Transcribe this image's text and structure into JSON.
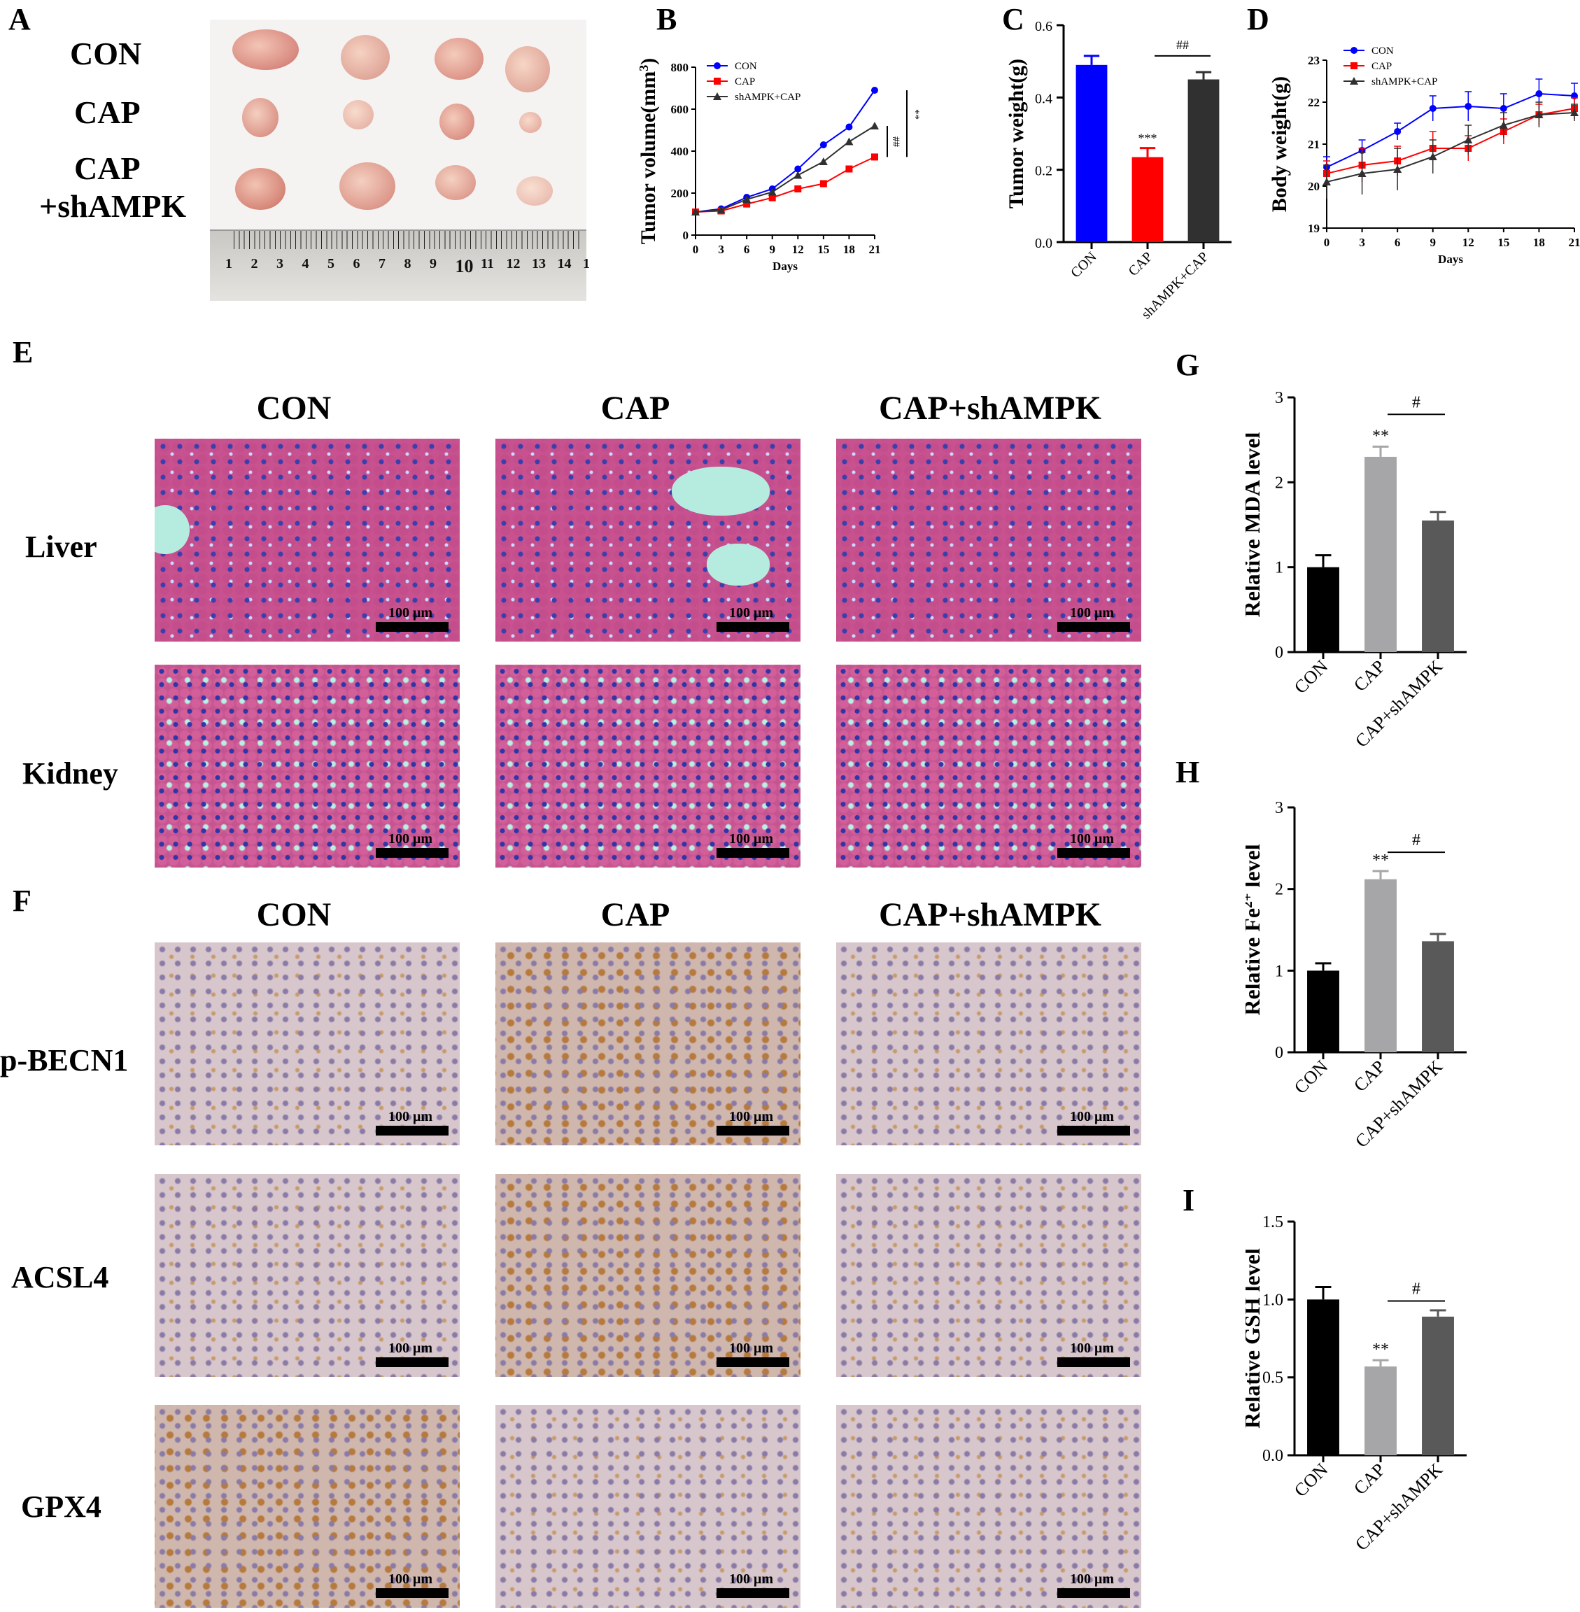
{
  "panels": {
    "A": "A",
    "B": "B",
    "C": "C",
    "D": "D",
    "E": "E",
    "F": "F",
    "G": "G",
    "H": "H",
    "I": "I"
  },
  "panelA": {
    "row_labels": [
      "CON",
      "CAP",
      "CAP",
      "+shAMPK"
    ],
    "ruler_numbers": [
      "1",
      "2",
      "3",
      "4",
      "5",
      "6",
      "7",
      "8",
      "9",
      "10",
      "11",
      "12",
      "13",
      "14",
      "1"
    ]
  },
  "groups": {
    "con": "CON",
    "cap": "CAP",
    "capsh": "CAP+shAMPK"
  },
  "tissues": {
    "liver": "Liver",
    "kidney": "Kidney"
  },
  "stains": {
    "p_becn1": "p-BECN1",
    "acsl4": "ACSL4",
    "gpx4": "GPX4"
  },
  "scale_bar": "100 μm",
  "colors": {
    "con": "#0000ff",
    "cap": "#ff0000",
    "sh": "#303030",
    "black": "#000000",
    "gray_light": "#a6a6a8",
    "gray_dark": "#595959"
  },
  "chart_data": [
    {
      "id": "B",
      "type": "line",
      "xlabel": "Days",
      "ylabel": "Tumor volume(mm3)",
      "x": [
        0,
        3,
        6,
        9,
        12,
        15,
        18,
        21
      ],
      "xlim": [
        0,
        21
      ],
      "ylim": [
        0,
        800
      ],
      "yticks": [
        0,
        200,
        400,
        600,
        800
      ],
      "series": [
        {
          "name": "CON",
          "values": [
            110,
            125,
            180,
            220,
            315,
            430,
            515,
            690
          ]
        },
        {
          "name": "CAP",
          "values": [
            110,
            115,
            148,
            178,
            220,
            245,
            315,
            372
          ]
        },
        {
          "name": "shAMPK+CAP",
          "values": [
            110,
            120,
            170,
            205,
            285,
            350,
            445,
            520
          ]
        }
      ],
      "annotations": [
        "##",
        "**"
      ]
    },
    {
      "id": "C",
      "type": "bar",
      "ylabel": "Tumor weight(g)",
      "categories": [
        "CON",
        "CAP",
        "shAMPK+CAP"
      ],
      "values": [
        0.49,
        0.235,
        0.45
      ],
      "errors": [
        0.025,
        0.025,
        0.02
      ],
      "ylim": [
        0,
        0.6
      ],
      "yticks": [
        "0.0",
        "0.2",
        "0.4",
        "0.6"
      ],
      "annotations": [
        "***",
        "##"
      ]
    },
    {
      "id": "D",
      "type": "line",
      "xlabel": "Days",
      "ylabel": "Body weight(g)",
      "x": [
        0,
        3,
        6,
        9,
        12,
        15,
        18,
        21
      ],
      "xlim": [
        0,
        21
      ],
      "ylim": [
        19,
        23
      ],
      "yticks": [
        19,
        20,
        21,
        22,
        23
      ],
      "series": [
        {
          "name": "CON",
          "values": [
            20.45,
            20.85,
            21.3,
            21.85,
            21.9,
            21.85,
            22.2,
            22.15
          ]
        },
        {
          "name": "CAP",
          "values": [
            20.3,
            20.5,
            20.6,
            20.9,
            20.9,
            21.3,
            21.7,
            21.85
          ]
        },
        {
          "name": "shAMPK+CAP",
          "values": [
            20.1,
            20.3,
            20.4,
            20.7,
            21.1,
            21.45,
            21.7,
            21.75
          ]
        }
      ]
    },
    {
      "id": "G",
      "type": "bar",
      "ylabel": "Relative MDA level",
      "categories": [
        "CON",
        "CAP",
        "CAP+shAMPK"
      ],
      "values": [
        1.0,
        2.3,
        1.55
      ],
      "errors": [
        0.14,
        0.12,
        0.1
      ],
      "ylim": [
        0,
        3
      ],
      "yticks": [
        "0",
        "1",
        "2",
        "3"
      ],
      "annotations": [
        "**",
        "#"
      ]
    },
    {
      "id": "H",
      "type": "bar",
      "ylabel": "Relative Fe2+ level",
      "categories": [
        "CON",
        "CAP",
        "CAP+shAMPK"
      ],
      "values": [
        1.0,
        2.12,
        1.36
      ],
      "errors": [
        0.09,
        0.1,
        0.09
      ],
      "ylim": [
        0,
        3
      ],
      "yticks": [
        "0",
        "1",
        "2",
        "3"
      ],
      "annotations": [
        "**",
        "#"
      ]
    },
    {
      "id": "I",
      "type": "bar",
      "ylabel": "Relative GSH level",
      "categories": [
        "CON",
        "CAP",
        "CAP+shAMPK"
      ],
      "values": [
        1.0,
        0.57,
        0.89
      ],
      "errors": [
        0.08,
        0.04,
        0.04
      ],
      "ylim": [
        0,
        1.5
      ],
      "yticks": [
        "0.0",
        "0.5",
        "1.0",
        "1.5"
      ],
      "annotations": [
        "**",
        "#"
      ]
    }
  ]
}
